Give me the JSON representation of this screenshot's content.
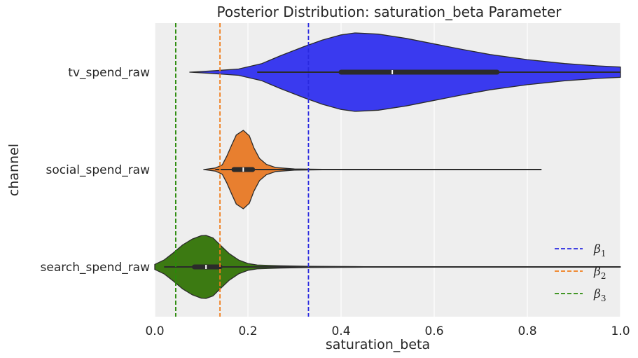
{
  "chart_data": {
    "type": "violin",
    "title": "Posterior Distribution: saturation_beta Parameter",
    "xlabel": "saturation_beta",
    "ylabel": "channel",
    "xlim": [
      0.0,
      1.0
    ],
    "x_ticks": [
      "0.0",
      "0.2",
      "0.4",
      "0.6",
      "0.8",
      "1.0"
    ],
    "grid": true,
    "legend_position": "bottom-right",
    "categories": [
      "tv_spend_raw",
      "social_spend_raw",
      "search_spend_raw"
    ],
    "violins": [
      {
        "category": "tv_spend_raw",
        "color": "#3a3aef",
        "min": 0.075,
        "whisker_low": 0.22,
        "q1": 0.4,
        "median": 0.51,
        "q3": 0.735,
        "whisker_high": 1.0,
        "density": [
          [
            0.075,
            0.0
          ],
          [
            0.12,
            0.03
          ],
          [
            0.18,
            0.08
          ],
          [
            0.23,
            0.22
          ],
          [
            0.27,
            0.42
          ],
          [
            0.32,
            0.65
          ],
          [
            0.36,
            0.82
          ],
          [
            0.4,
            0.95
          ],
          [
            0.43,
            1.0
          ],
          [
            0.48,
            0.97
          ],
          [
            0.54,
            0.86
          ],
          [
            0.6,
            0.72
          ],
          [
            0.66,
            0.58
          ],
          [
            0.72,
            0.45
          ],
          [
            0.8,
            0.32
          ],
          [
            0.88,
            0.22
          ],
          [
            0.95,
            0.16
          ],
          [
            1.0,
            0.13
          ]
        ]
      },
      {
        "category": "social_spend_raw",
        "color": "#e87f2f",
        "min": 0.105,
        "whisker_low": 0.13,
        "q1": 0.17,
        "median": 0.19,
        "q3": 0.21,
        "whisker_high": 0.26,
        "max": 0.83,
        "density": [
          [
            0.105,
            0.0
          ],
          [
            0.13,
            0.04
          ],
          [
            0.145,
            0.12
          ],
          [
            0.155,
            0.35
          ],
          [
            0.165,
            0.62
          ],
          [
            0.175,
            0.88
          ],
          [
            0.19,
            1.0
          ],
          [
            0.203,
            0.86
          ],
          [
            0.213,
            0.55
          ],
          [
            0.225,
            0.28
          ],
          [
            0.24,
            0.13
          ],
          [
            0.26,
            0.05
          ],
          [
            0.3,
            0.015
          ],
          [
            0.36,
            0.005
          ],
          [
            0.5,
            0.003
          ],
          [
            0.83,
            0.0
          ]
        ]
      },
      {
        "category": "search_spend_raw",
        "color": "#3c7a12",
        "min": 0.0,
        "whisker_low": 0.02,
        "q1": 0.085,
        "median": 0.11,
        "q3": 0.14,
        "whisker_high": 0.22,
        "max": 1.0,
        "density": [
          [
            0.0,
            0.08
          ],
          [
            0.02,
            0.22
          ],
          [
            0.04,
            0.45
          ],
          [
            0.06,
            0.7
          ],
          [
            0.08,
            0.88
          ],
          [
            0.1,
            0.99
          ],
          [
            0.11,
            1.0
          ],
          [
            0.125,
            0.92
          ],
          [
            0.14,
            0.7
          ],
          [
            0.16,
            0.42
          ],
          [
            0.18,
            0.22
          ],
          [
            0.2,
            0.11
          ],
          [
            0.22,
            0.06
          ],
          [
            0.27,
            0.035
          ],
          [
            0.33,
            0.02
          ],
          [
            0.45,
            0.01
          ],
          [
            0.6,
            0.006
          ],
          [
            0.8,
            0.004
          ],
          [
            1.0,
            0.003
          ]
        ]
      }
    ],
    "reference_lines": [
      {
        "label": "β1",
        "value": 0.33,
        "color": "#2a2ae0"
      },
      {
        "label": "β2",
        "value": 0.14,
        "color": "#f07d1a"
      },
      {
        "label": "β3",
        "value": 0.045,
        "color": "#2a8a0a"
      }
    ],
    "legend": [
      {
        "base": "β",
        "sub": "1",
        "color": "#2a2ae0"
      },
      {
        "base": "β",
        "sub": "2",
        "color": "#f07d1a"
      },
      {
        "base": "β",
        "sub": "3",
        "color": "#2a8a0a"
      }
    ]
  }
}
